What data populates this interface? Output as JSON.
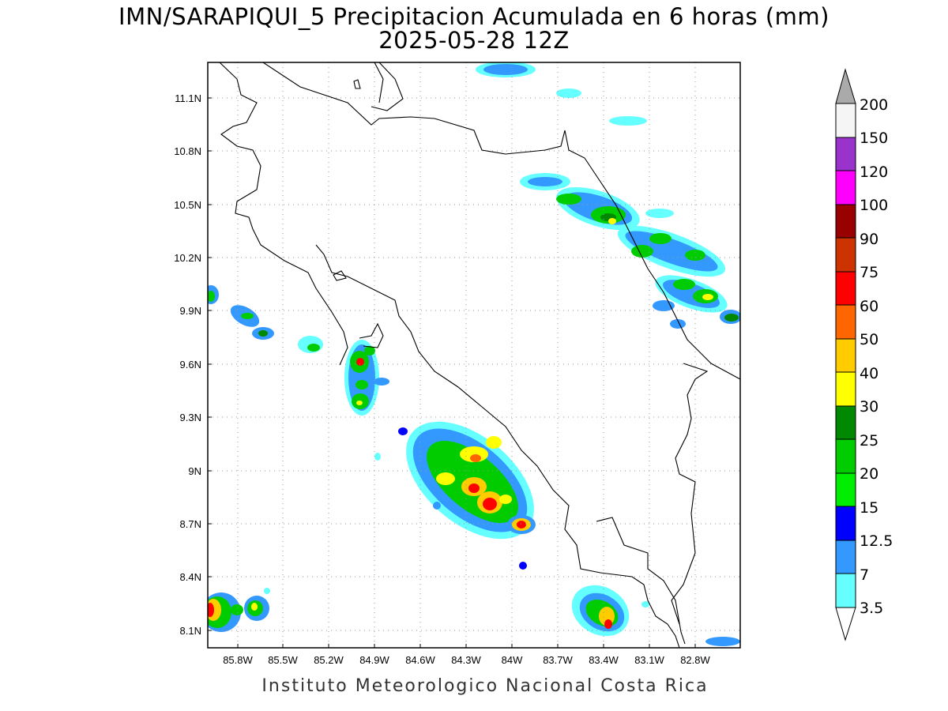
{
  "map": {
    "title_line1": "IMN/SARAPIQUI_5 Precipitacion Acumulada en 6 horas (mm)",
    "title_line2": "2025-05-28 12Z",
    "credit": "Instituto Meteorologico Nacional Costa Rica",
    "lat_labels": [
      "11.1N",
      "10.8N",
      "10.5N",
      "10.2N",
      "9.9N",
      "9.6N",
      "9.3N",
      "9N",
      "8.7N",
      "8.4N",
      "8.1N"
    ],
    "lon_labels": [
      "85.8W",
      "85.5W",
      "85.2W",
      "84.9W",
      "84.6W",
      "84.3W",
      "84W",
      "83.7W",
      "83.4W",
      "83.1W",
      "82.8W"
    ],
    "colorbar": {
      "labels": [
        "200",
        "150",
        "120",
        "100",
        "90",
        "75",
        "60",
        "50",
        "40",
        "30",
        "25",
        "20",
        "15",
        "12.5",
        "7",
        "3.5"
      ],
      "colors": {
        "c3_5": "#66ffff",
        "c7": "#3399ff",
        "c12_5": "#0000ff",
        "c15": "#00ee00",
        "c20": "#00cc00",
        "c25": "#008800",
        "c30": "#ffff00",
        "c40": "#ffcc00",
        "c50": "#ff6600",
        "c60": "#ff0000",
        "c75": "#cc3300",
        "c90": "#990000",
        "c100": "#ff00ff",
        "c120": "#9933cc",
        "c150": "#f5f5f5",
        "c200": "#aaaaaa"
      }
    }
  }
}
